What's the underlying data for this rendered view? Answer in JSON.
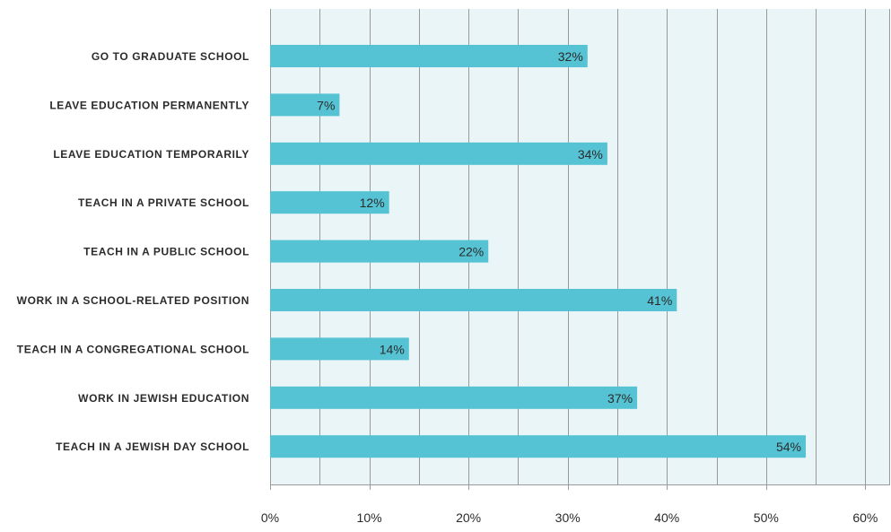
{
  "chart_data": {
    "type": "bar",
    "orientation": "horizontal",
    "title": "",
    "xlabel": "",
    "ylabel": "",
    "categories": [
      "GO TO GRADUATE SCHOOL",
      "LEAVE EDUCATION PERMANENTLY",
      "LEAVE EDUCATION TEMPORARILY",
      "TEACH IN A PRIVATE SCHOOL",
      "TEACH IN A PUBLIC SCHOOL",
      "WORK IN A SCHOOL-RELATED POSITION",
      "TEACH IN A CONGREGATIONAL SCHOOL",
      "WORK IN JEWISH EDUCATION",
      "TEACH IN A JEWISH DAY SCHOOL"
    ],
    "values": [
      32,
      7,
      34,
      12,
      22,
      41,
      14,
      37,
      54
    ],
    "data_labels": [
      "32%",
      "7%",
      "34%",
      "12%",
      "22%",
      "41%",
      "14%",
      "37%",
      "54%"
    ],
    "xlim": [
      0,
      62.5
    ],
    "x_ticks": [
      0,
      10,
      20,
      30,
      40,
      50,
      60
    ],
    "x_tick_labels": [
      "0%",
      "10%",
      "20%",
      "30%",
      "40%",
      "50%",
      "60%"
    ],
    "grid": true,
    "legend": "none",
    "colors": {
      "bar": "#55c3d3",
      "plot_background": "#e9f5f6",
      "grid_line": "#9a9a9a",
      "text": "#2b2b2b"
    }
  }
}
